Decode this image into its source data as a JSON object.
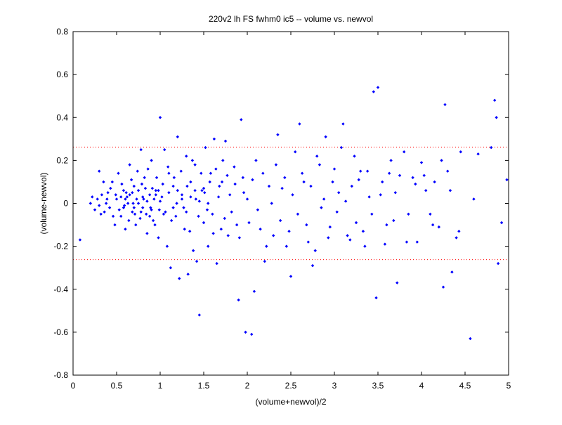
{
  "chart_data": {
    "type": "scatter",
    "title": "220v2 lh FS fwhm0 ic5 -- volume vs. newvol",
    "xlabel": "(volume+newvol)/2",
    "ylabel": "(volume-newvol)",
    "xlim": [
      0,
      5
    ],
    "ylim": [
      -0.8,
      0.8
    ],
    "x_ticks": [
      "0",
      "0.5",
      "1",
      "1.5",
      "2",
      "2.5",
      "3",
      "3.5",
      "4",
      "4.5",
      "5"
    ],
    "y_ticks": [
      "-0.8",
      "-0.6",
      "-0.4",
      "-0.2",
      "0",
      "0.2",
      "0.4",
      "0.6",
      "0.8"
    ],
    "grid": false,
    "legend": "none",
    "marker_color": "#0000ff",
    "reference_color": "#ff0000",
    "reference_lines": [
      0.262,
      -0.262
    ],
    "series": [
      {
        "marker": "diamond",
        "points": [
          [
            0.08,
            -0.17
          ],
          [
            0.2,
            0.0
          ],
          [
            0.22,
            0.03
          ],
          [
            0.25,
            -0.03
          ],
          [
            0.28,
            0.02
          ],
          [
            0.3,
            0.15
          ],
          [
            0.32,
            -0.05
          ],
          [
            0.35,
            0.1
          ],
          [
            0.38,
            0.0
          ],
          [
            0.4,
            0.05
          ],
          [
            0.42,
            -0.02
          ],
          [
            0.45,
            0.1
          ],
          [
            0.48,
            -0.1
          ],
          [
            0.5,
            0.02
          ],
          [
            0.52,
            0.14
          ],
          [
            0.55,
            -0.06
          ],
          [
            0.58,
            0.06
          ],
          [
            0.6,
            -0.12
          ],
          [
            0.62,
            0.03
          ],
          [
            0.65,
            0.18
          ],
          [
            0.68,
            -0.04
          ],
          [
            0.7,
            0.08
          ],
          [
            0.72,
            -0.1
          ],
          [
            0.75,
            0.0
          ],
          [
            0.78,
            0.25
          ],
          [
            0.8,
            -0.02
          ],
          [
            0.82,
            0.12
          ],
          [
            0.85,
            -0.14
          ],
          [
            0.88,
            0.04
          ],
          [
            0.9,
            0.2
          ],
          [
            0.92,
            -0.08
          ],
          [
            0.95,
            0.06
          ],
          [
            0.98,
            -0.16
          ],
          [
            1.0,
            0.4
          ],
          [
            1.02,
            0.03
          ],
          [
            1.05,
            0.25
          ],
          [
            1.08,
            -0.2
          ],
          [
            1.1,
            0.14
          ],
          [
            1.12,
            -0.3
          ],
          [
            1.15,
            0.08
          ],
          [
            1.18,
            -0.06
          ],
          [
            1.2,
            0.31
          ],
          [
            1.22,
            -0.35
          ],
          [
            1.25,
            0.02
          ],
          [
            1.28,
            -0.12
          ],
          [
            1.3,
            0.22
          ],
          [
            1.32,
            -0.33
          ],
          [
            1.35,
            0.1
          ],
          [
            1.38,
            -0.22
          ],
          [
            1.4,
            0.18
          ],
          [
            1.42,
            -0.27
          ],
          [
            1.45,
            -0.52
          ],
          [
            1.48,
            0.06
          ],
          [
            1.5,
            -0.09
          ],
          [
            1.52,
            0.26
          ],
          [
            1.55,
            -0.2
          ],
          [
            1.58,
            0.14
          ],
          [
            1.6,
            -0.05
          ],
          [
            1.62,
            0.3
          ],
          [
            1.65,
            -0.28
          ],
          [
            1.68,
            0.08
          ],
          [
            1.7,
            -0.12
          ],
          [
            1.72,
            0.2
          ],
          [
            1.75,
            0.29
          ],
          [
            1.78,
            -0.15
          ],
          [
            1.8,
            0.04
          ],
          [
            1.85,
            0.17
          ],
          [
            1.88,
            -0.1
          ],
          [
            1.9,
            -0.45
          ],
          [
            1.93,
            0.39
          ],
          [
            1.95,
            0.12
          ],
          [
            1.98,
            -0.6
          ],
          [
            2.0,
            0.02
          ],
          [
            2.05,
            -0.61
          ],
          [
            2.08,
            -0.41
          ],
          [
            2.1,
            0.2
          ],
          [
            2.15,
            -0.12
          ],
          [
            2.2,
            -0.27
          ],
          [
            2.25,
            0.08
          ],
          [
            2.3,
            -0.15
          ],
          [
            2.35,
            0.32
          ],
          [
            2.4,
            0.07
          ],
          [
            2.45,
            -0.2
          ],
          [
            2.5,
            -0.34
          ],
          [
            2.55,
            0.24
          ],
          [
            2.6,
            0.37
          ],
          [
            2.65,
            0.1
          ],
          [
            2.7,
            -0.18
          ],
          [
            2.75,
            -0.29
          ],
          [
            2.8,
            0.22
          ],
          [
            2.85,
            -0.02
          ],
          [
            2.9,
            0.31
          ],
          [
            2.95,
            -0.11
          ],
          [
            3.0,
            0.16
          ],
          [
            3.05,
            0.05
          ],
          [
            3.1,
            0.37
          ],
          [
            3.15,
            -0.15
          ],
          [
            3.2,
            0.08
          ],
          [
            3.25,
            -0.09
          ],
          [
            3.3,
            0.15
          ],
          [
            3.35,
            -0.2
          ],
          [
            3.4,
            0.03
          ],
          [
            3.45,
            0.52
          ],
          [
            3.48,
            -0.44
          ],
          [
            3.5,
            0.54
          ],
          [
            3.55,
            0.1
          ],
          [
            3.6,
            -0.1
          ],
          [
            3.65,
            0.2
          ],
          [
            3.7,
            0.05
          ],
          [
            3.72,
            -0.37
          ],
          [
            3.8,
            0.24
          ],
          [
            3.85,
            -0.05
          ],
          [
            3.9,
            0.12
          ],
          [
            3.95,
            -0.18
          ],
          [
            4.0,
            0.19
          ],
          [
            4.05,
            0.06
          ],
          [
            4.1,
            -0.05
          ],
          [
            4.15,
            0.1
          ],
          [
            4.2,
            -0.11
          ],
          [
            4.25,
            -0.39
          ],
          [
            4.27,
            0.46
          ],
          [
            4.3,
            0.15
          ],
          [
            4.35,
            -0.32
          ],
          [
            4.4,
            -0.16
          ],
          [
            4.45,
            0.24
          ],
          [
            4.56,
            -0.63
          ],
          [
            4.6,
            0.02
          ],
          [
            4.65,
            0.23
          ],
          [
            4.8,
            0.26
          ],
          [
            4.84,
            0.48
          ],
          [
            4.86,
            0.4
          ],
          [
            4.88,
            -0.28
          ],
          [
            4.92,
            -0.09
          ],
          [
            4.98,
            0.11
          ],
          [
            0.3,
            -0.01
          ],
          [
            0.33,
            0.04
          ],
          [
            0.36,
            -0.04
          ],
          [
            0.39,
            0.02
          ],
          [
            0.43,
            0.07
          ],
          [
            0.46,
            -0.06
          ],
          [
            0.49,
            0.04
          ],
          [
            0.53,
            -0.03
          ],
          [
            0.56,
            0.09
          ],
          [
            0.59,
            -0.01
          ],
          [
            0.61,
            0.05
          ],
          [
            0.64,
            -0.08
          ],
          [
            0.67,
            0.11
          ],
          [
            0.69,
            0.0
          ],
          [
            0.71,
            -0.05
          ],
          [
            0.74,
            0.15
          ],
          [
            0.77,
            -0.07
          ],
          [
            0.79,
            0.09
          ],
          [
            0.81,
            0.02
          ],
          [
            0.84,
            -0.05
          ],
          [
            0.86,
            0.16
          ],
          [
            0.89,
            -0.02
          ],
          [
            0.91,
            0.07
          ],
          [
            0.94,
            -0.1
          ],
          [
            0.96,
            0.12
          ],
          [
            0.99,
            -0.03
          ],
          [
            1.03,
            0.09
          ],
          [
            1.06,
            -0.04
          ],
          [
            1.09,
            0.17
          ],
          [
            1.13,
            -0.08
          ],
          [
            1.16,
            0.12
          ],
          [
            1.19,
            0.0
          ],
          [
            1.24,
            0.15
          ],
          [
            1.27,
            -0.02
          ],
          [
            1.31,
            0.08
          ],
          [
            1.34,
            -0.13
          ],
          [
            1.37,
            0.2
          ],
          [
            1.41,
            0.02
          ],
          [
            1.44,
            -0.06
          ],
          [
            1.47,
            0.14
          ],
          [
            1.51,
            0.05
          ],
          [
            1.54,
            -0.03
          ],
          [
            1.57,
            0.1
          ],
          [
            1.61,
            -0.14
          ],
          [
            1.64,
            0.16
          ],
          [
            1.67,
            0.03
          ],
          [
            1.71,
            0.1
          ],
          [
            1.74,
            -0.07
          ],
          [
            1.77,
            0.13
          ],
          [
            1.82,
            -0.04
          ],
          [
            1.86,
            0.09
          ],
          [
            1.91,
            -0.16
          ],
          [
            1.96,
            0.05
          ],
          [
            2.02,
            -0.09
          ],
          [
            2.06,
            0.11
          ],
          [
            2.12,
            -0.03
          ],
          [
            2.18,
            0.14
          ],
          [
            2.22,
            -0.2
          ],
          [
            2.28,
            0.0
          ],
          [
            2.33,
            0.18
          ],
          [
            2.38,
            -0.08
          ],
          [
            2.43,
            0.12
          ],
          [
            2.48,
            -0.13
          ],
          [
            2.52,
            0.04
          ],
          [
            2.58,
            -0.05
          ],
          [
            2.63,
            0.14
          ],
          [
            2.68,
            -0.1
          ],
          [
            2.73,
            0.08
          ],
          [
            2.78,
            -0.22
          ],
          [
            2.83,
            0.18
          ],
          [
            2.88,
            0.02
          ],
          [
            2.93,
            -0.16
          ],
          [
            2.98,
            0.1
          ],
          [
            3.03,
            -0.04
          ],
          [
            3.08,
            0.26
          ],
          [
            3.13,
            0.01
          ],
          [
            3.18,
            -0.17
          ],
          [
            3.23,
            0.22
          ],
          [
            3.28,
            0.11
          ],
          [
            3.33,
            -0.13
          ],
          [
            3.38,
            0.15
          ],
          [
            3.43,
            -0.05
          ],
          [
            3.53,
            0.04
          ],
          [
            3.58,
            -0.19
          ],
          [
            3.63,
            0.14
          ],
          [
            3.68,
            -0.08
          ],
          [
            3.75,
            0.13
          ],
          [
            3.83,
            -0.18
          ],
          [
            3.93,
            0.09
          ],
          [
            4.03,
            0.13
          ],
          [
            4.13,
            -0.1
          ],
          [
            4.23,
            0.2
          ],
          [
            4.33,
            0.06
          ],
          [
            4.43,
            -0.13
          ],
          [
            0.55,
            0.03
          ],
          [
            0.6,
            0.02
          ],
          [
            0.65,
            0.04
          ],
          [
            0.7,
            -0.02
          ],
          [
            0.75,
            0.06
          ],
          [
            0.8,
            0.03
          ],
          [
            0.85,
            0.01
          ],
          [
            0.9,
            -0.03
          ],
          [
            0.95,
            0.04
          ],
          [
            1.0,
            0.01
          ],
          [
            0.58,
            -0.02
          ],
          [
            0.63,
            0.0
          ],
          [
            0.68,
            0.05
          ],
          [
            0.73,
            0.02
          ],
          [
            0.78,
            -0.04
          ],
          [
            0.83,
            0.07
          ],
          [
            0.88,
            -0.06
          ],
          [
            0.93,
            0.02
          ],
          [
            0.98,
            0.06
          ],
          [
            1.04,
            -0.05
          ],
          [
            1.1,
            0.05
          ],
          [
            1.15,
            -0.02
          ],
          [
            1.2,
            0.06
          ],
          [
            1.25,
            0.04
          ],
          [
            1.3,
            -0.04
          ],
          [
            1.35,
            0.03
          ],
          [
            1.4,
            0.06
          ],
          [
            1.45,
            0.01
          ],
          [
            1.5,
            0.07
          ],
          [
            1.55,
            0.0
          ]
        ]
      }
    ]
  }
}
